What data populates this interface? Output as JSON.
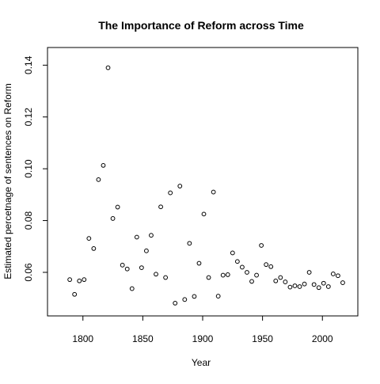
{
  "chart_data": {
    "type": "scatter",
    "title": "The Importance of Reform across Time",
    "xlabel": "Year",
    "ylabel": "Estimated percetnage of sentences on Reform",
    "xlim": [
      1780,
      2020
    ],
    "ylim": [
      0.047,
      0.143
    ],
    "x_ticks": [
      1800,
      1850,
      1900,
      1950,
      2000
    ],
    "y_ticks": [
      0.06,
      0.08,
      0.1,
      0.12,
      0.14
    ],
    "y_tick_labels": [
      "0.06",
      "0.08",
      "0.10",
      "0.12",
      "0.14"
    ],
    "grid": false,
    "marker": "open-circle",
    "point_color": "#000000",
    "points": [
      [
        1789,
        0.0572
      ],
      [
        1793,
        0.0515
      ],
      [
        1797,
        0.0567
      ],
      [
        1801,
        0.0572
      ],
      [
        1805,
        0.0731
      ],
      [
        1809,
        0.0692
      ],
      [
        1813,
        0.0958
      ],
      [
        1817,
        0.1013
      ],
      [
        1821,
        0.139
      ],
      [
        1825,
        0.0808
      ],
      [
        1829,
        0.0852
      ],
      [
        1833,
        0.0628
      ],
      [
        1837,
        0.0613
      ],
      [
        1841,
        0.0537
      ],
      [
        1845,
        0.0736
      ],
      [
        1849,
        0.0618
      ],
      [
        1853,
        0.0683
      ],
      [
        1857,
        0.0743
      ],
      [
        1861,
        0.0593
      ],
      [
        1865,
        0.0853
      ],
      [
        1869,
        0.058
      ],
      [
        1873,
        0.0907
      ],
      [
        1877,
        0.0481
      ],
      [
        1881,
        0.0933
      ],
      [
        1885,
        0.0495
      ],
      [
        1889,
        0.0712
      ],
      [
        1893,
        0.0507
      ],
      [
        1897,
        0.0635
      ],
      [
        1901,
        0.0825
      ],
      [
        1905,
        0.058
      ],
      [
        1909,
        0.091
      ],
      [
        1913,
        0.0508
      ],
      [
        1917,
        0.0589
      ],
      [
        1921,
        0.0591
      ],
      [
        1925,
        0.0675
      ],
      [
        1929,
        0.0642
      ],
      [
        1933,
        0.062
      ],
      [
        1937,
        0.06
      ],
      [
        1941,
        0.0565
      ],
      [
        1945,
        0.0589
      ],
      [
        1949,
        0.0704
      ],
      [
        1953,
        0.063
      ],
      [
        1957,
        0.0622
      ],
      [
        1961,
        0.0567
      ],
      [
        1965,
        0.058
      ],
      [
        1969,
        0.0563
      ],
      [
        1973,
        0.0543
      ],
      [
        1977,
        0.0548
      ],
      [
        1981,
        0.0545
      ],
      [
        1985,
        0.0555
      ],
      [
        1989,
        0.06
      ],
      [
        1993,
        0.0553
      ],
      [
        1997,
        0.0541
      ],
      [
        2001,
        0.0558
      ],
      [
        2005,
        0.0545
      ],
      [
        2009,
        0.0594
      ],
      [
        2013,
        0.0587
      ],
      [
        2017,
        0.056
      ]
    ]
  }
}
